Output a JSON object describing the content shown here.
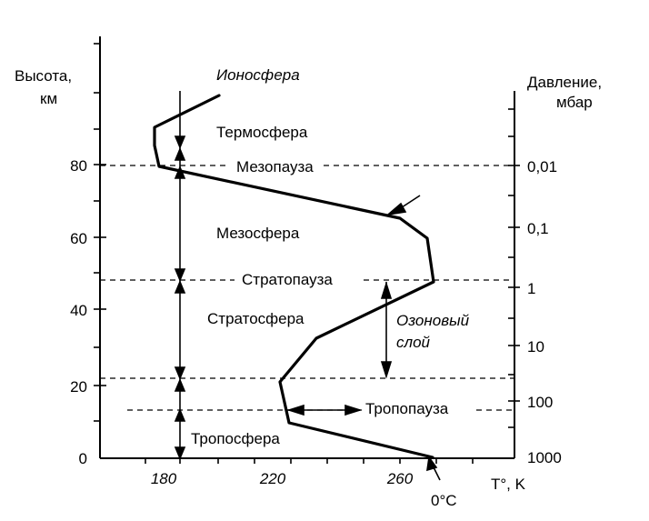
{
  "left_axis": {
    "title_line1": "Высота,",
    "title_line2": "км",
    "ticks": [
      "80",
      "60",
      "40",
      "20",
      "0"
    ]
  },
  "right_axis": {
    "title_line1": "Давление,",
    "title_line2": "мбар",
    "ticks": [
      "0,01",
      "0,1",
      "1",
      "10",
      "100",
      "1000"
    ]
  },
  "bottom_axis": {
    "ticks": [
      "180",
      "220",
      "260"
    ],
    "unit": "T°, K",
    "zero_c": "0°C"
  },
  "layers": {
    "ionosphere": "Ионосфера",
    "thermosphere": "Термосфера",
    "mesopause": "Мезопауза",
    "mesosphere": "Мезосфера",
    "stratopause": "Стратопауза",
    "stratosphere": "Стратосфера",
    "ozone_line1": "Озоновый",
    "ozone_line2": "слой",
    "tropopause": "Тропопауза",
    "troposphere": "Тропосфера"
  },
  "chart_data": {
    "type": "line",
    "xlabel": "T°, K",
    "ylabel": "Высота, км",
    "y2label": "Давление, мбар",
    "x_ticks": [
      180,
      220,
      260
    ],
    "y_ticks": [
      0,
      20,
      40,
      60,
      80
    ],
    "pressure_ticks": [
      "1000",
      "100",
      "10",
      "1",
      "0,1",
      "0,01"
    ],
    "temperature_profile": {
      "x": [
        271,
        222,
        220,
        232,
        272,
        270,
        259,
        180,
        177,
        177,
        199
      ],
      "y": [
        0,
        10,
        22,
        33,
        49,
        60,
        66,
        80,
        86,
        91,
        99
      ]
    },
    "boundaries_km": {
      "mesopause": 80,
      "stratopause": 49,
      "tropopause_upper": 22,
      "tropopause_lower": 13
    }
  }
}
